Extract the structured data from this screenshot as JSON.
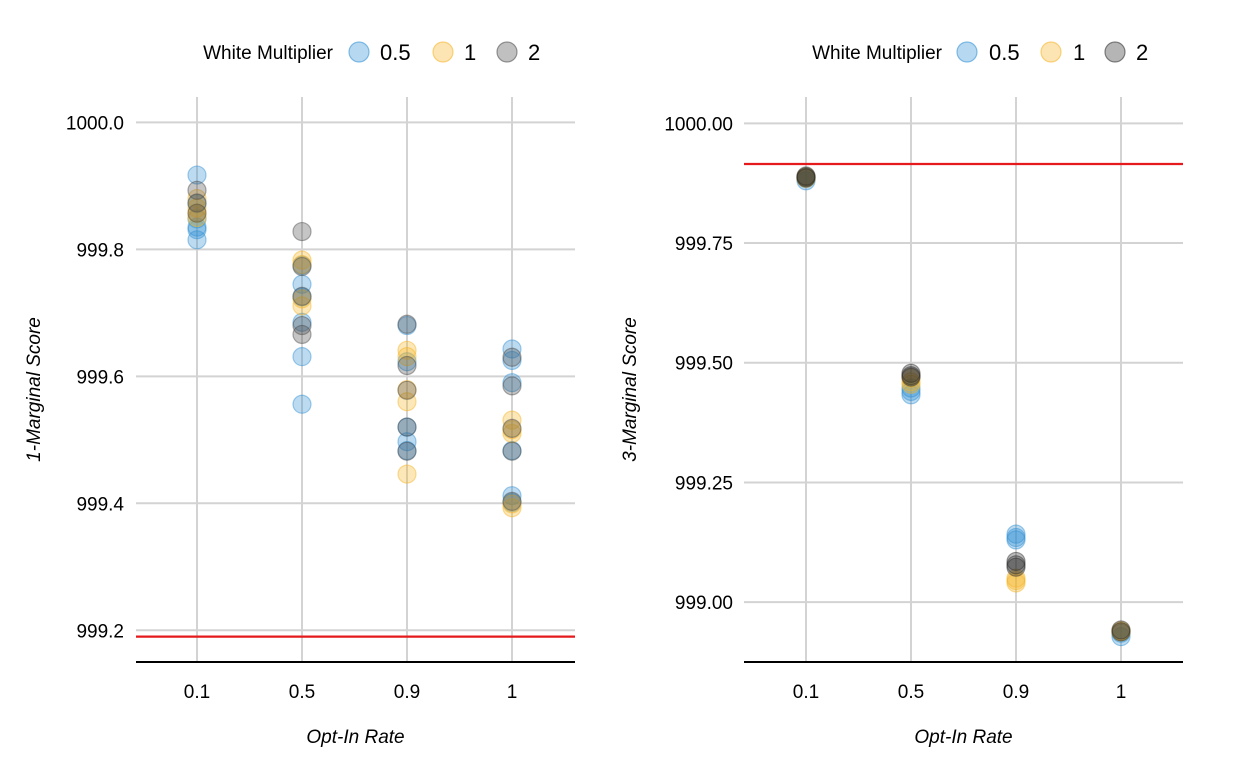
{
  "chart_data": [
    {
      "type": "scatter",
      "panel": "left",
      "xlabel": "Opt-In Rate",
      "ylabel": "1-Marginal Score",
      "categories": [
        "0.1",
        "0.5",
        "0.9",
        "1"
      ],
      "yticks": [
        "1000.0",
        "999.8",
        "999.6",
        "999.4",
        "999.2"
      ],
      "ytick_values": [
        1000.0,
        999.8,
        999.6,
        999.4,
        999.2
      ],
      "ylim": [
        999.15,
        1000.04
      ],
      "reference_line": 999.19,
      "legend": {
        "title": "White Multiplier",
        "placement": "top",
        "entries": [
          "0.5",
          "1",
          "2"
        ]
      },
      "series": [
        {
          "name": "0.5",
          "color": "#2e8ed3",
          "points": [
            [
              "0.1",
              999.917
            ],
            [
              "0.1",
              999.872
            ],
            [
              "0.1",
              999.848
            ],
            [
              "0.1",
              999.835
            ],
            [
              "0.1",
              999.831
            ],
            [
              "0.1",
              999.815
            ],
            [
              "0.5",
              999.775
            ],
            [
              "0.5",
              999.745
            ],
            [
              "0.5",
              999.725
            ],
            [
              "0.5",
              999.685
            ],
            [
              "0.5",
              999.631
            ],
            [
              "0.5",
              999.556
            ],
            [
              "0.9",
              999.68
            ],
            [
              "0.9",
              999.623
            ],
            [
              "0.9",
              999.52
            ],
            [
              "0.9",
              999.497
            ],
            [
              "0.9",
              999.483
            ],
            [
              "1",
              999.643
            ],
            [
              "1",
              999.625
            ],
            [
              "1",
              999.59
            ],
            [
              "1",
              999.483
            ],
            [
              "1",
              999.412
            ],
            [
              "1",
              999.401
            ]
          ]
        },
        {
          "name": "1",
          "color": "#f5b324",
          "points": [
            [
              "0.1",
              999.88
            ],
            [
              "0.1",
              999.865
            ],
            [
              "0.1",
              999.857
            ],
            [
              "0.1",
              999.85
            ],
            [
              "0.5",
              999.783
            ],
            [
              "0.5",
              999.776
            ],
            [
              "0.5",
              999.722
            ],
            [
              "0.5",
              999.711
            ],
            [
              "0.9",
              999.641
            ],
            [
              "0.9",
              999.631
            ],
            [
              "0.9",
              999.579
            ],
            [
              "0.9",
              999.56
            ],
            [
              "0.9",
              999.446
            ],
            [
              "1",
              999.531
            ],
            [
              "1",
              999.516
            ],
            [
              "1",
              999.51
            ],
            [
              "1",
              999.399
            ],
            [
              "1",
              999.393
            ]
          ]
        },
        {
          "name": "2",
          "color": "#4a4a4a",
          "points": [
            [
              "0.1",
              999.893
            ],
            [
              "0.1",
              999.873
            ],
            [
              "0.1",
              999.857
            ],
            [
              "0.5",
              999.828
            ],
            [
              "0.5",
              999.773
            ],
            [
              "0.5",
              999.726
            ],
            [
              "0.5",
              999.68
            ],
            [
              "0.5",
              999.666
            ],
            [
              "0.9",
              999.682
            ],
            [
              "0.9",
              999.617
            ],
            [
              "0.9",
              999.578
            ],
            [
              "0.9",
              999.52
            ],
            [
              "0.9",
              999.482
            ],
            [
              "1",
              999.63
            ],
            [
              "1",
              999.585
            ],
            [
              "1",
              999.518
            ],
            [
              "1",
              999.482
            ],
            [
              "1",
              999.403
            ]
          ]
        }
      ]
    },
    {
      "type": "scatter",
      "panel": "right",
      "xlabel": "Opt-In Rate",
      "ylabel": "3-Marginal Score",
      "categories": [
        "0.1",
        "0.5",
        "0.9",
        "1"
      ],
      "yticks": [
        "1000.00",
        "999.75",
        "999.50",
        "999.25",
        "999.00"
      ],
      "ytick_values": [
        1000.0,
        999.75,
        999.5,
        999.25,
        999.0
      ],
      "ylim": [
        998.875,
        1000.055
      ],
      "reference_line": 999.915,
      "legend": {
        "title": "White Multiplier",
        "placement": "top",
        "entries": [
          "0.5",
          "1",
          "2"
        ]
      },
      "series": [
        {
          "name": "0.5",
          "color": "#2e8ed3",
          "points": [
            [
              "0.1",
              999.88
            ],
            [
              "0.1",
              999.885
            ],
            [
              "0.5",
              999.433
            ],
            [
              "0.5",
              999.44
            ],
            [
              "0.5",
              999.447
            ],
            [
              "0.9",
              999.142
            ],
            [
              "0.9",
              999.135
            ],
            [
              "0.9",
              999.13
            ],
            [
              "1",
              998.928
            ],
            [
              "1",
              998.935
            ]
          ]
        },
        {
          "name": "1",
          "color": "#f5b324",
          "points": [
            [
              "0.1",
              999.885
            ],
            [
              "0.1",
              999.888
            ],
            [
              "0.5",
              999.46
            ],
            [
              "0.5",
              999.468
            ],
            [
              "0.5",
              999.455
            ],
            [
              "0.9",
              999.04
            ],
            [
              "0.9",
              999.045
            ],
            [
              "0.9",
              999.05
            ],
            [
              "1",
              998.938
            ],
            [
              "1",
              998.94
            ]
          ]
        },
        {
          "name": "2",
          "color": "#2b2b2b",
          "points": [
            [
              "0.1",
              999.888
            ],
            [
              "0.1",
              999.89
            ],
            [
              "0.1",
              999.886
            ],
            [
              "0.5",
              999.478
            ],
            [
              "0.5",
              999.473
            ],
            [
              "0.5",
              999.47
            ],
            [
              "0.9",
              999.085
            ],
            [
              "0.9",
              999.078
            ],
            [
              "0.9",
              999.073
            ],
            [
              "1",
              998.942
            ],
            [
              "1",
              998.938
            ]
          ]
        }
      ]
    }
  ]
}
